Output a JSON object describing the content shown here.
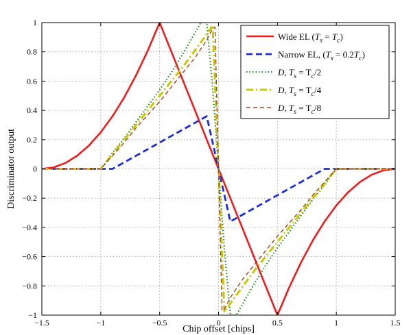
{
  "chart_data": {
    "type": "line",
    "title": "",
    "xlabel": "Chip offset [chips]",
    "ylabel": "Discriminator output",
    "xlim": [
      -1.5,
      1.5
    ],
    "ylim": [
      -1,
      1
    ],
    "xticks": [
      -1.5,
      -1,
      -0.5,
      0,
      0.5,
      1,
      1.5
    ],
    "xtick_labels": [
      "−1.5",
      "−1",
      "−0.5",
      "0",
      "0.5",
      "1",
      "1.5"
    ],
    "yticks": [
      -1,
      -0.8,
      -0.6,
      -0.4,
      -0.2,
      0,
      0.2,
      0.4,
      0.6,
      0.8,
      1
    ],
    "ytick_labels": [
      "−1",
      "−0.8",
      "−0.6",
      "−0.4",
      "−0.2",
      "0",
      "0.2",
      "0.4",
      "0.6",
      "0.8",
      "1"
    ],
    "grid": true,
    "legend_position": "top-right",
    "series": [
      {
        "name": "Wide EL (Ts = Tc)",
        "legend": {
          "pre": "Wide EL (",
          "it1": "T",
          "sub1": "s",
          "mid": " = ",
          "it2": "T",
          "sub2": "c",
          "post": ")"
        },
        "color": "#ee1c1c",
        "style": "solid",
        "x": [
          -1.5,
          -1.4,
          -1.3,
          -1.2,
          -1.1,
          -1.0,
          -0.9,
          -0.8,
          -0.7,
          -0.6,
          -0.5,
          0,
          0.5,
          0.6,
          0.7,
          0.8,
          0.9,
          1.0,
          1.1,
          1.2,
          1.3,
          1.4,
          1.5
        ],
        "y": [
          0,
          0.01,
          0.04,
          0.09,
          0.16,
          0.25,
          0.36,
          0.49,
          0.64,
          0.81,
          1.0,
          0,
          -1.0,
          -0.81,
          -0.64,
          -0.49,
          -0.36,
          -0.25,
          -0.16,
          -0.09,
          -0.04,
          -0.01,
          0
        ]
      },
      {
        "name": "Narrow EL, (Ts = 0.2Tc)",
        "legend": {
          "pre": "Narrow EL, (",
          "it1": "T",
          "sub1": "s",
          "mid": " = 0.2",
          "it2": "T",
          "sub2": "c",
          "post": ")"
        },
        "color": "#1c2fd6",
        "style": "dashed",
        "x": [
          -1.5,
          -0.9,
          -0.1,
          0,
          0.1,
          0.9,
          1.5
        ],
        "y": [
          0,
          0,
          0.36,
          0,
          -0.36,
          0,
          0
        ]
      },
      {
        "name": "D, Ts = Tc/2",
        "legend": {
          "pre": "",
          "it1": "D",
          "sub1": "",
          "mid": ", ",
          "it2": "T",
          "sub2": "s",
          "post": " = T",
          "sub3": "c",
          "post2": "/2"
        },
        "color": "#1e8a1e",
        "style": "dotted",
        "x": [
          -1.5,
          -1.0,
          -0.9,
          -0.8,
          -0.7,
          -0.6,
          -0.5,
          -0.4,
          -0.3,
          -0.2,
          -0.15,
          -0.1,
          -0.05,
          0,
          0.05,
          0.1,
          0.15,
          0.2,
          0.3,
          0.4,
          0.5,
          0.6,
          0.7,
          0.8,
          0.9,
          1.0,
          1.5
        ],
        "y": [
          0,
          0,
          0.11,
          0.21,
          0.32,
          0.43,
          0.54,
          0.66,
          0.79,
          0.93,
          1.0,
          1.0,
          0.55,
          0,
          -0.55,
          -1.0,
          -1.0,
          -0.93,
          -0.79,
          -0.66,
          -0.54,
          -0.43,
          -0.32,
          -0.21,
          -0.11,
          0,
          0
        ]
      },
      {
        "name": "D, Ts = Tc/4",
        "legend": {
          "pre": "",
          "it1": "D",
          "sub1": "",
          "mid": ", ",
          "it2": "T",
          "sub2": "s",
          "post": " = T",
          "sub3": "c",
          "post2": "/4"
        },
        "color": "#c8c800",
        "style": "dashdot",
        "x": [
          -1.5,
          -1.0,
          -0.9,
          -0.8,
          -0.7,
          -0.6,
          -0.5,
          -0.4,
          -0.3,
          -0.2,
          -0.1,
          -0.05,
          0,
          0.05,
          0.1,
          0.2,
          0.3,
          0.4,
          0.5,
          0.6,
          0.7,
          0.8,
          0.9,
          1.0,
          1.5
        ],
        "y": [
          0,
          0,
          0.1,
          0.2,
          0.3,
          0.4,
          0.5,
          0.6,
          0.7,
          0.81,
          0.92,
          0.98,
          0,
          -0.98,
          -0.92,
          -0.81,
          -0.7,
          -0.6,
          -0.5,
          -0.4,
          -0.3,
          -0.2,
          -0.1,
          0,
          0
        ]
      },
      {
        "name": "D, Ts = Tc/8",
        "legend": {
          "pre": "",
          "it1": "D",
          "sub1": "",
          "mid": ", ",
          "it2": "T",
          "sub2": "s",
          "post": " = T",
          "sub3": "c",
          "post2": "/8"
        },
        "color": "#a0401c",
        "style": "dashed-thin",
        "x": [
          -1.5,
          -1.0,
          -0.9,
          -0.8,
          -0.7,
          -0.6,
          -0.5,
          -0.4,
          -0.3,
          -0.2,
          -0.1,
          -0.05,
          -0.03,
          0,
          0.03,
          0.05,
          0.1,
          0.2,
          0.3,
          0.4,
          0.5,
          0.6,
          0.7,
          0.8,
          0.9,
          1.0,
          1.5
        ],
        "y": [
          0,
          0,
          0.09,
          0.18,
          0.28,
          0.37,
          0.46,
          0.56,
          0.66,
          0.76,
          0.88,
          0.96,
          0.97,
          0,
          -0.97,
          -0.96,
          -0.88,
          -0.76,
          -0.66,
          -0.56,
          -0.46,
          -0.37,
          -0.28,
          -0.18,
          -0.09,
          0,
          0
        ]
      }
    ]
  }
}
